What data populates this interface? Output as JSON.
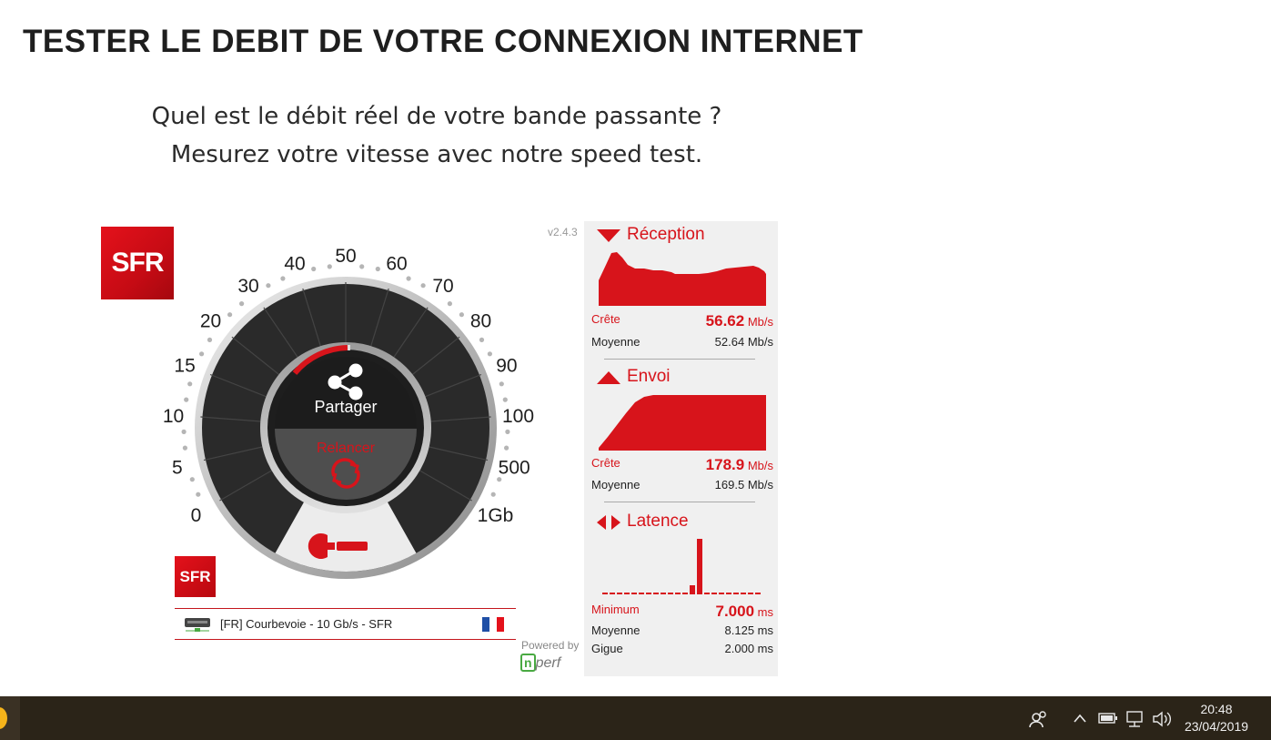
{
  "page": {
    "title": "TESTER LE DEBIT DE VOTRE CONNEXION INTERNET",
    "subtitle_line1": "Quel est le débit réel de votre bande passante ?",
    "subtitle_line2": "Mesurez votre vitesse avec notre speed test."
  },
  "brand": {
    "logo_text": "SFR",
    "accent": "#d7141b"
  },
  "gauge": {
    "labels": [
      "0",
      "5",
      "10",
      "15",
      "20",
      "30",
      "40",
      "50",
      "60",
      "70",
      "80",
      "90",
      "100",
      "500",
      "1Gb"
    ],
    "share_label": "Partager",
    "restart_label": "Relancer",
    "settings_icon": "wrench-icon"
  },
  "server": {
    "name": "[FR] Courbevoie - 10 Gb/s - SFR"
  },
  "version": "v2.4.3",
  "powered_by": "Powered by",
  "nperf_logo": {
    "letter": "n",
    "rest": "perf"
  },
  "reception": {
    "title": "Réception",
    "peak_label": "Crête",
    "peak_value": "56.62",
    "peak_unit": "Mb/s",
    "avg_label": "Moyenne",
    "avg_value": "52.64 Mb/s"
  },
  "upload": {
    "title": "Envoi",
    "peak_label": "Crête",
    "peak_value": "178.9",
    "peak_unit": "Mb/s",
    "avg_label": "Moyenne",
    "avg_value": "169.5 Mb/s"
  },
  "latency": {
    "title": "Latence",
    "min_label": "Minimum",
    "min_value": "7.000",
    "min_unit": "ms",
    "avg_label": "Moyenne",
    "avg_value": "8.125 ms",
    "jitter_label": "Gigue",
    "jitter_value": "2.000 ms"
  },
  "taskbar": {
    "time": "20:48",
    "date": "23/04/2019"
  }
}
